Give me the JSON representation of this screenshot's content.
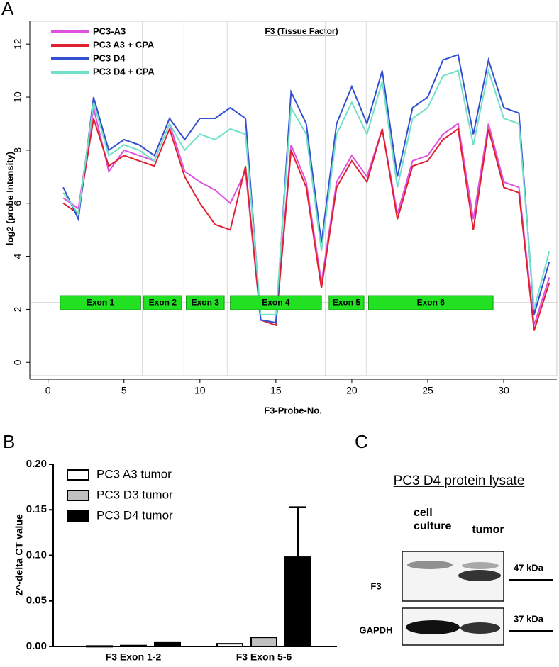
{
  "chart_data": [
    {
      "type": "line",
      "panel_label": "A",
      "title": "F3 (Tissue Factor)",
      "xlabel": "F3-Probe-No.",
      "ylabel": "log2 (probe Intensity)",
      "x": [
        1,
        2,
        3,
        4,
        5,
        6,
        7,
        8,
        9,
        10,
        11,
        12,
        13,
        14,
        15,
        16,
        17,
        18,
        19,
        20,
        21,
        22,
        23,
        24,
        25,
        26,
        27,
        28,
        29,
        30,
        31,
        32,
        33
      ],
      "series": [
        {
          "name": "PC3-A3",
          "color": "#e050e0",
          "values": [
            6.2,
            5.8,
            9.6,
            7.2,
            8.0,
            7.8,
            7.6,
            9.0,
            7.2,
            6.8,
            6.5,
            6.0,
            7.2,
            1.6,
            1.5,
            8.2,
            6.8,
            3.0,
            6.8,
            7.8,
            7.0,
            8.8,
            5.6,
            7.6,
            7.8,
            8.6,
            9.0,
            5.4,
            9.0,
            6.8,
            6.6,
            1.4,
            3.2
          ]
        },
        {
          "name": "PC3 A3 + CPA",
          "color": "#e02030",
          "values": [
            6.0,
            5.6,
            9.2,
            7.4,
            7.8,
            7.6,
            7.4,
            8.8,
            7.0,
            6.0,
            5.2,
            5.0,
            7.4,
            1.6,
            1.4,
            8.0,
            6.6,
            2.8,
            6.6,
            7.6,
            6.8,
            8.8,
            5.4,
            7.4,
            7.6,
            8.4,
            8.8,
            5.0,
            8.8,
            6.6,
            6.4,
            1.2,
            3.0
          ]
        },
        {
          "name": "PC3 D4",
          "color": "#3450d0",
          "values": [
            6.6,
            5.4,
            10.0,
            8.0,
            8.4,
            8.2,
            7.8,
            9.2,
            8.4,
            9.2,
            9.2,
            9.6,
            9.2,
            1.6,
            1.5,
            10.2,
            9.0,
            4.5,
            9.0,
            10.4,
            9.0,
            11.0,
            7.0,
            9.6,
            10.0,
            11.4,
            11.6,
            8.6,
            11.4,
            9.6,
            9.4,
            1.8,
            3.8
          ]
        },
        {
          "name": "PC3 D4 + CPA",
          "color": "#70e0c8",
          "values": [
            6.4,
            5.6,
            9.8,
            7.8,
            8.2,
            8.0,
            7.6,
            9.0,
            8.0,
            8.6,
            8.4,
            8.8,
            8.6,
            1.8,
            1.8,
            9.6,
            8.6,
            4.2,
            8.6,
            9.8,
            8.6,
            10.6,
            6.6,
            9.2,
            9.6,
            10.8,
            11.0,
            8.2,
            11.0,
            9.2,
            9.0,
            2.0,
            4.2
          ]
        }
      ],
      "exon_y": 2.25,
      "exons": [
        {
          "label": "Exon 1",
          "x": [
            0.8,
            6.1
          ]
        },
        {
          "label": "Exon 2",
          "x": [
            6.3,
            8.8
          ]
        },
        {
          "label": "Exon 3",
          "x": [
            9.1,
            11.6
          ]
        },
        {
          "label": "Exon 4",
          "x": [
            12.0,
            18.0
          ]
        },
        {
          "label": "Exon 5",
          "x": [
            18.5,
            20.8
          ]
        },
        {
          "label": "Exon 6",
          "x": [
            21.1,
            29.3
          ]
        }
      ],
      "xlim": [
        -1.2,
        33.5
      ],
      "xticks": [
        0,
        5,
        10,
        15,
        20,
        25,
        30
      ],
      "ylim": [
        -0.5,
        12.86
      ],
      "yticks": [
        0,
        2,
        4,
        6,
        8,
        10,
        12
      ],
      "legend": "upper left"
    },
    {
      "type": "bar",
      "panel_label": "B",
      "ylabel": "2^-delta CT value",
      "categories": [
        "F3 Exon 1-2",
        "F3 Exon 5-6"
      ],
      "series": [
        {
          "name": "PC3 A3 tumor",
          "color": "#ffffff",
          "values": [
            0.0005,
            0.003
          ]
        },
        {
          "name": "PC3 D3 tumor",
          "color": "#c0c0c0",
          "values": [
            0.001,
            0.01
          ]
        },
        {
          "name": "PC3 D4 tumor",
          "color": "#000000",
          "values": [
            0.004,
            0.098
          ],
          "errors": [
            null,
            0.055
          ]
        }
      ],
      "ylim": [
        0,
        0.2
      ],
      "yticks": [
        {
          "value": 0,
          "label": "0.00"
        },
        {
          "value": 0.05,
          "label": "0.05"
        },
        {
          "value": 0.1,
          "label": "0.10"
        },
        {
          "value": 0.15,
          "label": "0.15"
        },
        {
          "value": 0.2,
          "label": "0.20"
        }
      ],
      "legend": "upper left"
    }
  ],
  "blot": {
    "panel_label": "C",
    "title": "PC3 D4 protein lysate",
    "columns": [
      "cell culture",
      "tumor"
    ],
    "rows": [
      "F3",
      "GAPDH"
    ],
    "sizes": [
      "47 kDa",
      "37 kDa"
    ]
  }
}
